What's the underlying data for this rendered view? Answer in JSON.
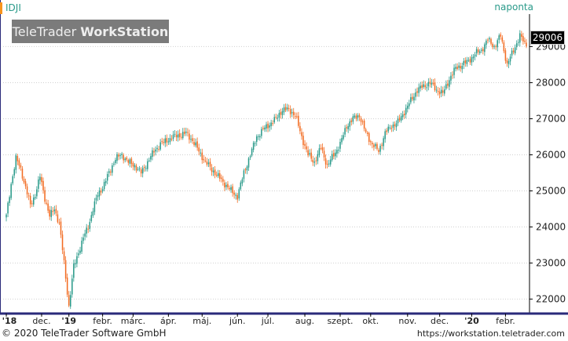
{
  "header": {
    "ticker": "IDJI",
    "period": "naponta",
    "logo_normal": "TeleTrader",
    "logo_bold": "WorkStation",
    "last_price": "29006"
  },
  "footer": {
    "copyright": "© 2020 TeleTrader Software GmbH",
    "url": "https://workstation.teletrader.com"
  },
  "colors": {
    "up": "#2a9a8a",
    "down": "#f26b21",
    "grid": "#d0d0d0",
    "axis": "#000000"
  },
  "chart_data": {
    "type": "candlestick",
    "ylim": [
      21600,
      29900
    ],
    "y_ticks": [
      22000,
      23000,
      24000,
      25000,
      26000,
      27000,
      28000,
      29000
    ],
    "y_tick_labels": [
      "22000",
      "23000",
      "24000",
      "25000",
      "26000",
      "27000",
      "28000",
      "29000"
    ],
    "x_tick_labels": [
      {
        "label": "'18",
        "index": 0,
        "year": true
      },
      {
        "label": "dec.",
        "index": 22,
        "year": false
      },
      {
        "label": "'19",
        "index": 39,
        "year": true
      },
      {
        "label": "febr.",
        "index": 60,
        "year": false
      },
      {
        "label": "márc.",
        "index": 79,
        "year": false
      },
      {
        "label": "ápr.",
        "index": 101,
        "year": false
      },
      {
        "label": "máj.",
        "index": 122,
        "year": false
      },
      {
        "label": "jún.",
        "index": 144,
        "year": false
      },
      {
        "label": "júl.",
        "index": 163,
        "year": false
      },
      {
        "label": "aug.",
        "index": 186,
        "year": false
      },
      {
        "label": "szept.",
        "index": 208,
        "year": false
      },
      {
        "label": "okt.",
        "index": 227,
        "year": false
      },
      {
        "label": "nov.",
        "index": 250,
        "year": false
      },
      {
        "label": "dec.",
        "index": 270,
        "year": false
      },
      {
        "label": "'20",
        "index": 290,
        "year": true
      },
      {
        "label": "febr.",
        "index": 311,
        "year": false
      }
    ],
    "trading_days": 325,
    "closes_anchor_points": [
      [
        0,
        24300
      ],
      [
        3,
        25200
      ],
      [
        6,
        25900
      ],
      [
        9,
        25600
      ],
      [
        12,
        25100
      ],
      [
        15,
        24600
      ],
      [
        18,
        24900
      ],
      [
        21,
        25400
      ],
      [
        24,
        24800
      ],
      [
        27,
        24300
      ],
      [
        30,
        24500
      ],
      [
        33,
        24100
      ],
      [
        36,
        23000
      ],
      [
        39,
        21800
      ],
      [
        42,
        22900
      ],
      [
        45,
        23300
      ],
      [
        48,
        23700
      ],
      [
        51,
        24000
      ],
      [
        54,
        24500
      ],
      [
        57,
        24900
      ],
      [
        60,
        25100
      ],
      [
        64,
        25500
      ],
      [
        68,
        25900
      ],
      [
        72,
        26000
      ],
      [
        76,
        25800
      ],
      [
        80,
        25700
      ],
      [
        84,
        25500
      ],
      [
        88,
        25800
      ],
      [
        92,
        26100
      ],
      [
        96,
        26300
      ],
      [
        100,
        26400
      ],
      [
        104,
        26500
      ],
      [
        108,
        26550
      ],
      [
        112,
        26600
      ],
      [
        116,
        26400
      ],
      [
        120,
        26100
      ],
      [
        124,
        25800
      ],
      [
        128,
        25600
      ],
      [
        132,
        25400
      ],
      [
        136,
        25200
      ],
      [
        140,
        25000
      ],
      [
        144,
        24850
      ],
      [
        148,
        25500
      ],
      [
        152,
        26000
      ],
      [
        156,
        26500
      ],
      [
        160,
        26700
      ],
      [
        164,
        26850
      ],
      [
        168,
        27000
      ],
      [
        172,
        27250
      ],
      [
        176,
        27250
      ],
      [
        180,
        27100
      ],
      [
        184,
        26500
      ],
      [
        188,
        26000
      ],
      [
        192,
        25800
      ],
      [
        196,
        26200
      ],
      [
        200,
        25700
      ],
      [
        204,
        26000
      ],
      [
        208,
        26300
      ],
      [
        212,
        26800
      ],
      [
        216,
        27000
      ],
      [
        220,
        27100
      ],
      [
        224,
        26600
      ],
      [
        228,
        26300
      ],
      [
        232,
        26100
      ],
      [
        236,
        26600
      ],
      [
        240,
        26800
      ],
      [
        244,
        26900
      ],
      [
        248,
        27200
      ],
      [
        252,
        27500
      ],
      [
        256,
        27800
      ],
      [
        260,
        27900
      ],
      [
        264,
        28000
      ],
      [
        268,
        27800
      ],
      [
        272,
        27700
      ],
      [
        276,
        28100
      ],
      [
        280,
        28400
      ],
      [
        284,
        28500
      ],
      [
        288,
        28600
      ],
      [
        292,
        28800
      ],
      [
        296,
        28900
      ],
      [
        300,
        29200
      ],
      [
        304,
        29000
      ],
      [
        308,
        29300
      ],
      [
        312,
        28500
      ],
      [
        316,
        28900
      ],
      [
        320,
        29300
      ],
      [
        324,
        29006
      ]
    ]
  }
}
